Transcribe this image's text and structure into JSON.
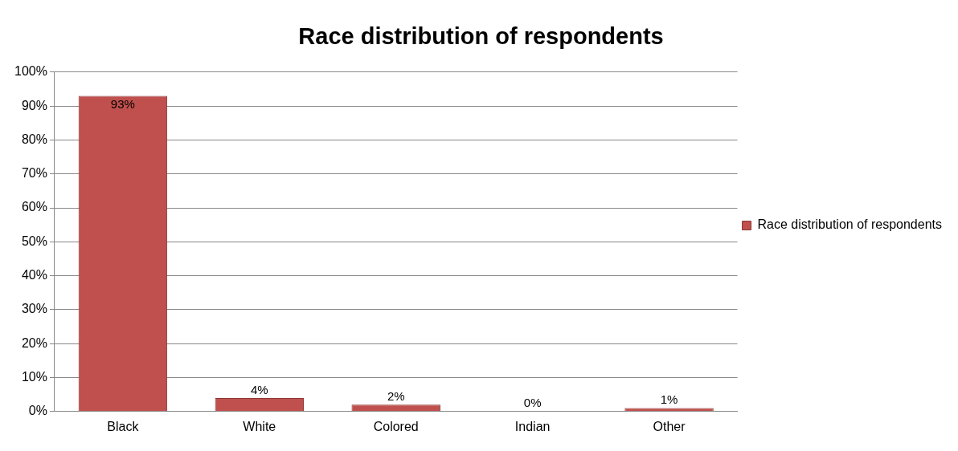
{
  "chart_data": {
    "type": "bar",
    "title": "Race distribution of respondents",
    "categories": [
      "Black",
      "White",
      "Colored",
      "Indian",
      "Other"
    ],
    "series": [
      {
        "name": "Race distribution of respondents",
        "color": "#c0504d",
        "values": [
          93,
          4,
          2,
          0,
          1
        ],
        "value_labels": [
          "93%",
          "4%",
          "2%",
          "0%",
          "1%"
        ]
      }
    ],
    "ylim": [
      0,
      100
    ],
    "yticks": [
      {
        "value": 0,
        "label": "0%"
      },
      {
        "value": 10,
        "label": "10%"
      },
      {
        "value": 20,
        "label": "20%"
      },
      {
        "value": 30,
        "label": "30%"
      },
      {
        "value": 40,
        "label": "40%"
      },
      {
        "value": 50,
        "label": "50%"
      },
      {
        "value": 60,
        "label": "60%"
      },
      {
        "value": 70,
        "label": "70%"
      },
      {
        "value": 80,
        "label": "80%"
      },
      {
        "value": 90,
        "label": "90%"
      },
      {
        "value": 100,
        "label": "100%"
      }
    ],
    "grid": "y",
    "legend": "right"
  }
}
